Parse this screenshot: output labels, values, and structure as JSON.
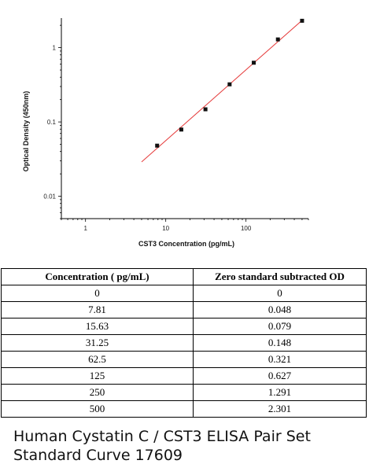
{
  "chart_data": {
    "type": "scatter",
    "xscale": "log",
    "yscale": "log",
    "xlim": [
      0.5,
      600
    ],
    "ylim": [
      0.005,
      2.5
    ],
    "xticks": [
      1,
      10,
      100
    ],
    "xtick_labels": [
      "1",
      "10",
      "100"
    ],
    "yticks": [
      0.01,
      0.1,
      1
    ],
    "ytick_labels": [
      "0.01",
      "0.1",
      "1"
    ],
    "xlabel": "CST3 Concentration (pg/mL)",
    "ylabel": "Optical Density (450nm)",
    "points": {
      "x": [
        7.81,
        15.63,
        31.25,
        62.5,
        125,
        250,
        500
      ],
      "y": [
        0.048,
        0.079,
        0.148,
        0.321,
        0.627,
        1.291,
        2.301
      ]
    },
    "fit_line": {
      "x": [
        5,
        500
      ],
      "y": [
        0.029,
        2.33
      ]
    },
    "grid": false,
    "colors": {
      "points": "#111111",
      "fit_line": "#e53a3a",
      "axes": "#000000"
    }
  },
  "table": {
    "headers": [
      "Concentration ( pg/mL)",
      "Zero standard subtracted OD"
    ],
    "rows": [
      [
        "0",
        "0"
      ],
      [
        "7.81",
        "0.048"
      ],
      [
        "15.63",
        "0.079"
      ],
      [
        "31.25",
        "0.148"
      ],
      [
        "62.5",
        "0.321"
      ],
      [
        "125",
        "0.627"
      ],
      [
        "250",
        "1.291"
      ],
      [
        "500",
        "2.301"
      ]
    ]
  },
  "caption": {
    "line1": "Human Cystatin C / CST3 ELISA Pair Set",
    "line2": "Standard Curve 17609"
  }
}
